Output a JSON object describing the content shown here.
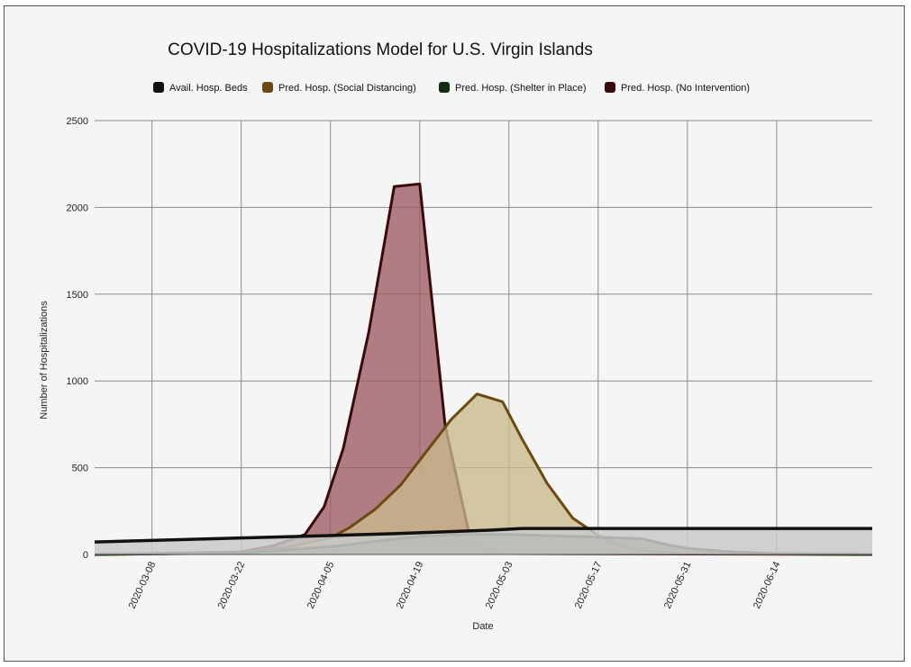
{
  "chart_data": {
    "type": "area",
    "title": "COVID-19 Hospitalizations Model for U.S. Virgin Islands",
    "xlabel": "Date",
    "ylabel": "Number of Hospitalizations",
    "ylim": [
      0,
      2500
    ],
    "yticks": [
      "0",
      "500",
      "1000",
      "1500",
      "2000",
      "2500"
    ],
    "xticks": [
      "2020-03-08",
      "2020-03-22",
      "2020-04-05",
      "2020-04-19",
      "2020-05-03",
      "2020-05-17",
      "2020-05-31",
      "2020-06-14"
    ],
    "xrange": [
      "2020-02-28",
      "2020-06-29"
    ],
    "grid": true,
    "legend_position": "top",
    "series": [
      {
        "name": "Avail. Hosp. Beds",
        "color": "#111111",
        "fill": "#c9c9c9",
        "points": [
          [
            "2020-02-28",
            72
          ],
          [
            "2020-03-15",
            88
          ],
          [
            "2020-04-01",
            105
          ],
          [
            "2020-04-15",
            120
          ],
          [
            "2020-04-30",
            140
          ],
          [
            "2020-05-05",
            150
          ],
          [
            "2020-05-31",
            150
          ],
          [
            "2020-06-29",
            150
          ]
        ]
      },
      {
        "name": "Pred. Hosp. (Social Distancing)",
        "color": "#6b4a12",
        "fill": "#c9b98a",
        "points": [
          [
            "2020-02-28",
            0
          ],
          [
            "2020-03-22",
            10
          ],
          [
            "2020-03-29",
            40
          ],
          [
            "2020-04-05",
            95
          ],
          [
            "2020-04-08",
            155
          ],
          [
            "2020-04-12",
            260
          ],
          [
            "2020-04-16",
            400
          ],
          [
            "2020-04-20",
            590
          ],
          [
            "2020-04-24",
            780
          ],
          [
            "2020-04-28",
            925
          ],
          [
            "2020-05-02",
            880
          ],
          [
            "2020-05-05",
            670
          ],
          [
            "2020-05-09",
            410
          ],
          [
            "2020-05-13",
            210
          ],
          [
            "2020-05-17",
            110
          ],
          [
            "2020-05-21",
            45
          ],
          [
            "2020-05-25",
            18
          ],
          [
            "2020-05-31",
            5
          ],
          [
            "2020-06-29",
            0
          ]
        ]
      },
      {
        "name": "Pred. Hosp. (Shelter in Place)",
        "color": "#0f2e10",
        "fill": "#5a6a40",
        "points": [
          [
            "2020-02-28",
            0
          ],
          [
            "2020-03-22",
            8
          ],
          [
            "2020-04-05",
            45
          ],
          [
            "2020-04-12",
            75
          ],
          [
            "2020-04-19",
            105
          ],
          [
            "2020-04-26",
            115
          ],
          [
            "2020-05-03",
            115
          ],
          [
            "2020-05-10",
            108
          ],
          [
            "2020-05-17",
            100
          ],
          [
            "2020-05-24",
            90
          ],
          [
            "2020-05-28",
            55
          ],
          [
            "2020-05-31",
            35
          ],
          [
            "2020-06-07",
            15
          ],
          [
            "2020-06-14",
            5
          ],
          [
            "2020-06-29",
            0
          ]
        ]
      },
      {
        "name": "Pred. Hosp. (No Intervention)",
        "color": "#3a0a0a",
        "fill": "#9c5b63",
        "points": [
          [
            "2020-02-28",
            0
          ],
          [
            "2020-03-22",
            15
          ],
          [
            "2020-03-27",
            50
          ],
          [
            "2020-04-01",
            115
          ],
          [
            "2020-04-04",
            275
          ],
          [
            "2020-04-07",
            610
          ],
          [
            "2020-04-11",
            1280
          ],
          [
            "2020-04-15",
            2120
          ],
          [
            "2020-04-19",
            2135
          ],
          [
            "2020-04-23",
            740
          ],
          [
            "2020-04-27",
            80
          ],
          [
            "2020-05-02",
            5
          ],
          [
            "2020-06-29",
            0
          ]
        ]
      }
    ]
  }
}
